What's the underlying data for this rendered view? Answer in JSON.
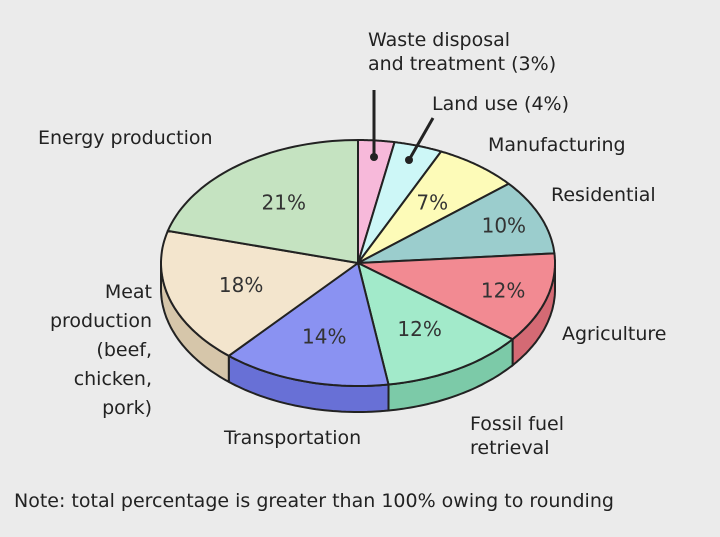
{
  "chart_data": {
    "type": "pie",
    "style": "3d",
    "title": "",
    "slices": [
      {
        "label": "Waste disposal and treatment (3%)",
        "label_lines": [
          "Waste disposal",
          "and treatment (3%)"
        ],
        "value": 3,
        "value_label": "",
        "color": "#f7b9da",
        "side": "#d896b8"
      },
      {
        "label": "Land use (4%)",
        "label_lines": [
          "Land use (4%)"
        ],
        "value": 4,
        "value_label": "",
        "color": "#cdf7f7",
        "side": "#a8d8d8"
      },
      {
        "label": "Manufacturing",
        "label_lines": [
          "Manufacturing"
        ],
        "value": 7,
        "value_label": "7%",
        "color": "#fdfbb8",
        "side": "#d8d690"
      },
      {
        "label": "Residential",
        "label_lines": [
          "Residential"
        ],
        "value": 10,
        "value_label": "10%",
        "color": "#9bcdcd",
        "side": "#78acac"
      },
      {
        "label": "Agriculture",
        "label_lines": [
          "Agriculture"
        ],
        "value": 12,
        "value_label": "12%",
        "color": "#f28a92",
        "side": "#d46a74"
      },
      {
        "label": "Fossil fuel retrieval",
        "label_lines": [
          "Fossil fuel",
          "retrieval"
        ],
        "value": 12,
        "value_label": "12%",
        "color": "#a2eaca",
        "side": "#7ccaa8"
      },
      {
        "label": "Transportation",
        "label_lines": [
          "Transportation"
        ],
        "value": 14,
        "value_label": "14%",
        "color": "#8a92f2",
        "side": "#6870d6"
      },
      {
        "label": "Meat production (beef, chicken, pork)",
        "label_lines": [
          "Meat",
          "production",
          "(beef,",
          "chicken,",
          "pork)"
        ],
        "value": 18,
        "value_label": "18%",
        "color": "#f3e5cd",
        "side": "#d6c6aa"
      },
      {
        "label": "Energy production",
        "label_lines": [
          "Energy production"
        ],
        "value": 21,
        "value_label": "21%",
        "color": "#c5e3c1",
        "side": "#a2c29e"
      }
    ],
    "note": "Note: total percentage is greater than 100% owing to rounding"
  }
}
